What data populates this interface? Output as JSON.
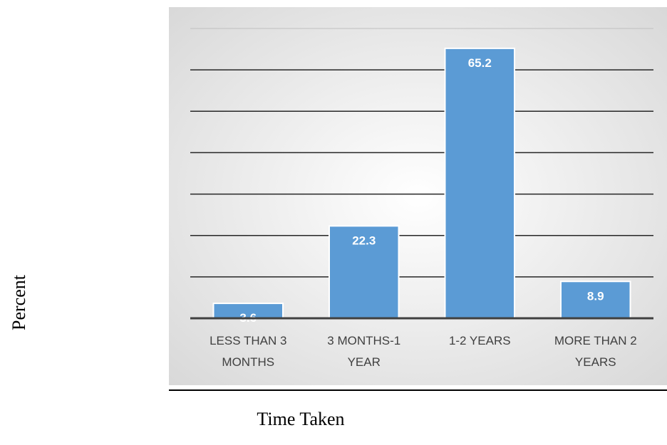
{
  "chart_data": {
    "type": "bar",
    "title": "",
    "xlabel": "Time Taken",
    "ylabel": "Percent",
    "categories": [
      [
        "LESS THAN 3",
        "MONTHS"
      ],
      [
        "3 MONTHS-1",
        "YEAR"
      ],
      [
        "1-2 YEARS"
      ],
      [
        "MORE THAN 2",
        "YEARS"
      ]
    ],
    "values": [
      3.6,
      22.3,
      65.2,
      8.9
    ],
    "data_labels": [
      "3.6",
      "22.3",
      "65.2",
      "8.9"
    ],
    "ylim": [
      0,
      70
    ],
    "grid": true,
    "legend": "none",
    "colors": {
      "bar": "#5b9bd5",
      "bar_border": "#ffffff",
      "gridline": "#262626",
      "top_gridline": "#bfbfbf",
      "plot_bg_center": "#ffffff",
      "plot_bg_edge": "#d9d9d9"
    }
  }
}
